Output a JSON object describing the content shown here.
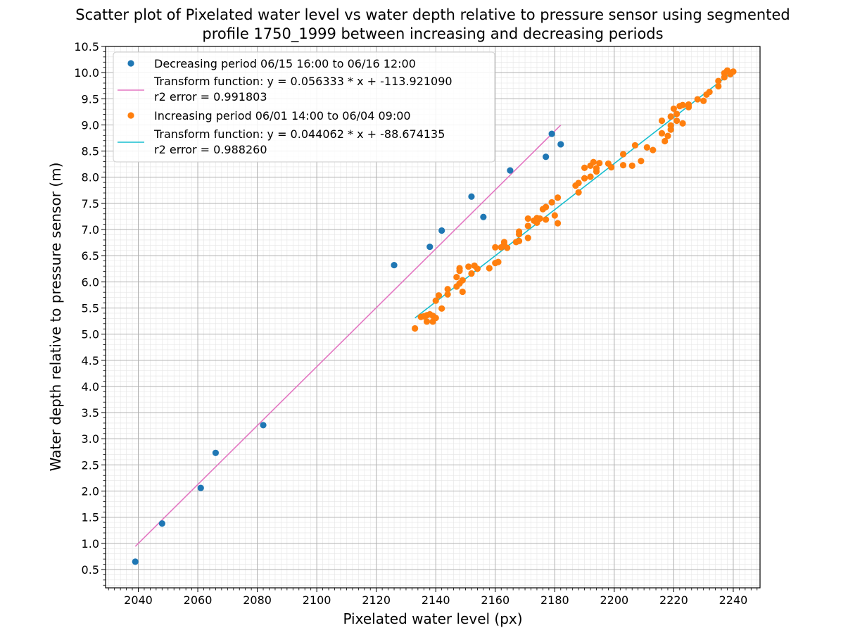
{
  "chart_data": {
    "type": "scatter",
    "title_line1": "Scatter plot of Pixelated water level vs water depth relative to pressure sensor using segmented",
    "title_line2": "profile 1750_1999 between increasing and decreasing periods",
    "xlabel": "Pixelated water level (px)",
    "ylabel": "Water depth relative to pressure sensor (m)",
    "xlim": [
      2029,
      2249
    ],
    "ylim": [
      0.15,
      10.5
    ],
    "grid": true,
    "minor_grid": true,
    "legend_position": "upper-left",
    "x_ticks": [
      "2040",
      "2060",
      "2080",
      "2100",
      "2120",
      "2140",
      "2160",
      "2180",
      "2200",
      "2220",
      "2240"
    ],
    "y_ticks": [
      "0.5",
      "1.0",
      "1.5",
      "2.0",
      "2.5",
      "3.0",
      "3.5",
      "4.0",
      "4.5",
      "5.0",
      "5.5",
      "6.0",
      "6.5",
      "7.0",
      "7.5",
      "8.0",
      "8.5",
      "9.0",
      "9.5",
      "10.0",
      "10.5"
    ],
    "series": [
      {
        "name": "Decreasing period 06/15 16:00 to 06/16 12:00",
        "color": "#1f77b4",
        "points": [
          [
            2039,
            0.65
          ],
          [
            2048,
            1.38
          ],
          [
            2061,
            2.06
          ],
          [
            2066,
            2.73
          ],
          [
            2082,
            3.26
          ],
          [
            2126,
            6.32
          ],
          [
            2138,
            6.67
          ],
          [
            2142,
            6.98
          ],
          [
            2152,
            7.63
          ],
          [
            2156,
            7.24
          ],
          [
            2165,
            8.13
          ],
          [
            2177,
            8.39
          ],
          [
            2179,
            8.83
          ],
          [
            2182,
            8.63
          ]
        ]
      },
      {
        "name": "Increasing period 06/01 14:00 to 06/04 09:00",
        "color": "#ff7f0e",
        "points": [
          [
            2133,
            5.11
          ],
          [
            2135,
            5.33
          ],
          [
            2136,
            5.34
          ],
          [
            2137,
            5.24
          ],
          [
            2137,
            5.36
          ],
          [
            2138,
            5.38
          ],
          [
            2139,
            5.24
          ],
          [
            2139,
            5.35
          ],
          [
            2140,
            5.31
          ],
          [
            2140,
            5.64
          ],
          [
            2141,
            5.74
          ],
          [
            2142,
            5.49
          ],
          [
            2144,
            5.86
          ],
          [
            2144,
            5.76
          ],
          [
            2147,
            5.91
          ],
          [
            2147,
            6.09
          ],
          [
            2148,
            6.21
          ],
          [
            2148,
            6.26
          ],
          [
            2148,
            5.97
          ],
          [
            2149,
            5.81
          ],
          [
            2149,
            6.03
          ],
          [
            2151,
            6.29
          ],
          [
            2152,
            6.16
          ],
          [
            2153,
            6.31
          ],
          [
            2154,
            6.25
          ],
          [
            2158,
            6.26
          ],
          [
            2160,
            6.36
          ],
          [
            2160,
            6.66
          ],
          [
            2161,
            6.38
          ],
          [
            2162,
            6.66
          ],
          [
            2163,
            6.71
          ],
          [
            2163,
            6.76
          ],
          [
            2164,
            6.65
          ],
          [
            2167,
            6.76
          ],
          [
            2168,
            6.78
          ],
          [
            2168,
            6.96
          ],
          [
            2168,
            6.91
          ],
          [
            2171,
            6.84
          ],
          [
            2171,
            7.07
          ],
          [
            2171,
            7.21
          ],
          [
            2173,
            7.17
          ],
          [
            2174,
            7.22
          ],
          [
            2174,
            7.13
          ],
          [
            2175,
            7.21
          ],
          [
            2176,
            7.39
          ],
          [
            2177,
            7.43
          ],
          [
            2177,
            7.19
          ],
          [
            2179,
            7.52
          ],
          [
            2180,
            7.27
          ],
          [
            2181,
            7.12
          ],
          [
            2181,
            7.61
          ],
          [
            2187,
            7.84
          ],
          [
            2188,
            7.71
          ],
          [
            2188,
            7.89
          ],
          [
            2190,
            7.98
          ],
          [
            2190,
            8.18
          ],
          [
            2192,
            8.22
          ],
          [
            2192,
            8.01
          ],
          [
            2193,
            8.29
          ],
          [
            2194,
            8.11
          ],
          [
            2194,
            8.17
          ],
          [
            2195,
            8.27
          ],
          [
            2198,
            8.26
          ],
          [
            2199,
            8.19
          ],
          [
            2203,
            8.23
          ],
          [
            2203,
            8.44
          ],
          [
            2206,
            8.22
          ],
          [
            2207,
            8.61
          ],
          [
            2209,
            8.31
          ],
          [
            2211,
            8.57
          ],
          [
            2213,
            8.52
          ],
          [
            2216,
            8.84
          ],
          [
            2216,
            9.08
          ],
          [
            2217,
            8.69
          ],
          [
            2218,
            8.79
          ],
          [
            2219,
            8.91
          ],
          [
            2219,
            8.99
          ],
          [
            2219,
            9.16
          ],
          [
            2220,
            9.31
          ],
          [
            2221,
            9.08
          ],
          [
            2221,
            9.21
          ],
          [
            2222,
            9.36
          ],
          [
            2223,
            9.03
          ],
          [
            2223,
            9.38
          ],
          [
            2225,
            9.34
          ],
          [
            2225,
            9.39
          ],
          [
            2228,
            9.49
          ],
          [
            2230,
            9.46
          ],
          [
            2231,
            9.58
          ],
          [
            2232,
            9.63
          ],
          [
            2235,
            9.74
          ],
          [
            2235,
            9.84
          ],
          [
            2237,
            9.91
          ],
          [
            2237,
            9.99
          ],
          [
            2238,
            10.04
          ],
          [
            2239,
            9.97
          ],
          [
            2240,
            10.02
          ]
        ]
      }
    ],
    "fit_lines": [
      {
        "label_line1": "Transform function: y = 0.056333 * x + -113.921090",
        "label_line2": "r2 error = 0.991803",
        "color": "#e377c2",
        "slope": 0.056333,
        "intercept": -113.92109,
        "x_range": [
          2039,
          2182
        ]
      },
      {
        "label_line1": "Transform function: y = 0.044062 * x + -88.674135",
        "label_line2": "r2 error = 0.988260",
        "color": "#17becf",
        "slope": 0.044062,
        "intercept": -88.674135,
        "x_range": [
          2133,
          2240
        ]
      }
    ]
  }
}
